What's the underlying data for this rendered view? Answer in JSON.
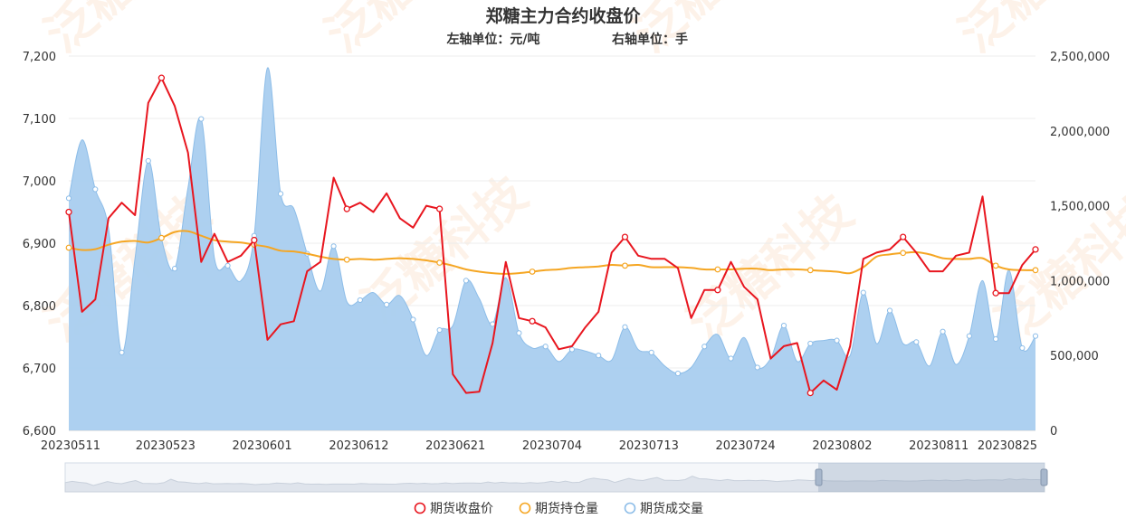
{
  "chart_data": {
    "type": "line",
    "title": "郑糖主力合约收盘价",
    "subtitle_left": "左轴单位：元/吨",
    "subtitle_right": "右轴单位：手",
    "watermark": "泛糖科技",
    "x_tick_labels": [
      "20230511",
      "20230523",
      "20230601",
      "20230612",
      "20230621",
      "20230704",
      "20230713",
      "20230724",
      "20230802",
      "20230811",
      "20230825"
    ],
    "y_left": {
      "min": 6600,
      "max": 7200,
      "ticks": [
        "6,600",
        "6,700",
        "6,800",
        "6,900",
        "7,000",
        "7,100",
        "7,200"
      ]
    },
    "y_right": {
      "min": 0,
      "max": 2500000,
      "ticks": [
        "0",
        "500,000",
        "1,000,000",
        "1,500,000",
        "2,000,000",
        "2,500,000"
      ]
    },
    "n_points": 74,
    "grid": true,
    "legend_position": "bottom",
    "series": [
      {
        "name": "期货收盘价",
        "axis": "left",
        "color": "#e8161f",
        "style": "line",
        "values": [
          6950,
          6790,
          6810,
          6940,
          6965,
          6945,
          7125,
          7165,
          7120,
          7045,
          6870,
          6915,
          6870,
          6880,
          6905,
          6745,
          6770,
          6775,
          6855,
          6870,
          7005,
          6955,
          6965,
          6950,
          6980,
          6940,
          6925,
          6960,
          6955,
          6690,
          6660,
          6662,
          6740,
          6870,
          6780,
          6775,
          6765,
          6730,
          6735,
          6765,
          6790,
          6885,
          6910,
          6880,
          6875,
          6875,
          6860,
          6780,
          6825,
          6825,
          6870,
          6830,
          6810,
          6715,
          6735,
          6740,
          6660,
          6680,
          6665,
          6735,
          6875,
          6885,
          6890,
          6910,
          6885,
          6855,
          6855,
          6880,
          6885,
          6975,
          6820,
          6820,
          6865,
          6890
        ]
      },
      {
        "name": "期货持仓量",
        "axis": "right",
        "color": "#f5a623",
        "style": "line",
        "values": [
          1220000,
          1205000,
          1210000,
          1240000,
          1260000,
          1265000,
          1255000,
          1285000,
          1325000,
          1330000,
          1300000,
          1270000,
          1260000,
          1255000,
          1240000,
          1225000,
          1200000,
          1195000,
          1180000,
          1160000,
          1145000,
          1140000,
          1145000,
          1140000,
          1145000,
          1150000,
          1145000,
          1135000,
          1120000,
          1100000,
          1075000,
          1060000,
          1050000,
          1045000,
          1050000,
          1060000,
          1070000,
          1075000,
          1085000,
          1090000,
          1095000,
          1105000,
          1100000,
          1105000,
          1090000,
          1090000,
          1090000,
          1085000,
          1075000,
          1075000,
          1075000,
          1080000,
          1080000,
          1070000,
          1075000,
          1075000,
          1070000,
          1065000,
          1060000,
          1050000,
          1090000,
          1160000,
          1175000,
          1185000,
          1190000,
          1175000,
          1150000,
          1145000,
          1145000,
          1150000,
          1100000,
          1075000,
          1070000,
          1070000
        ]
      },
      {
        "name": "期货成交量",
        "axis": "right",
        "color": "#a9cdef",
        "style": "area",
        "values": [
          1550000,
          1940000,
          1610000,
          1350000,
          520000,
          1150000,
          1800000,
          1280000,
          1080000,
          1620000,
          2080000,
          1150000,
          1100000,
          1000000,
          1300000,
          2420000,
          1580000,
          1480000,
          1180000,
          930000,
          1230000,
          860000,
          870000,
          920000,
          840000,
          900000,
          740000,
          500000,
          670000,
          700000,
          1000000,
          880000,
          710000,
          1020000,
          650000,
          550000,
          560000,
          460000,
          540000,
          530000,
          500000,
          470000,
          690000,
          540000,
          520000,
          430000,
          380000,
          420000,
          560000,
          640000,
          480000,
          620000,
          420000,
          480000,
          700000,
          460000,
          580000,
          600000,
          600000,
          500000,
          920000,
          580000,
          800000,
          580000,
          590000,
          430000,
          660000,
          440000,
          630000,
          1000000,
          610000,
          1070000,
          550000,
          630000
        ]
      }
    ]
  }
}
